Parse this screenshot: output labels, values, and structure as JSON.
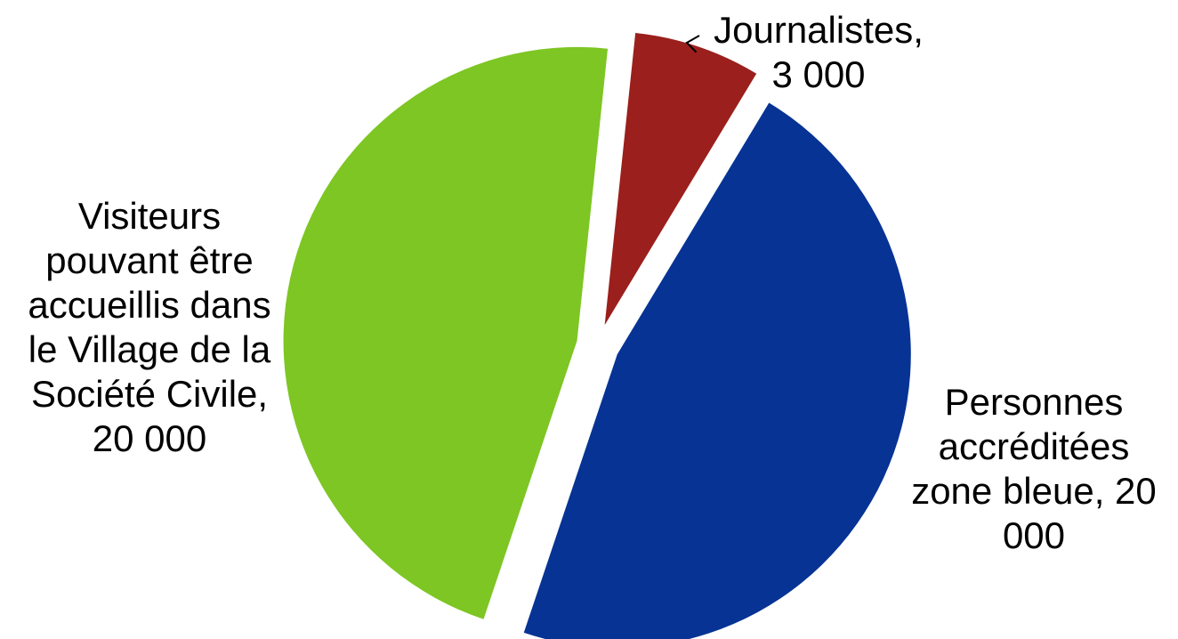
{
  "chart_data": {
    "type": "pie",
    "exploded": true,
    "slices": [
      {
        "label_lines": [
          "Journalistes,",
          "3 000"
        ],
        "category": "Journalistes",
        "value": 3000,
        "value_text": "3 000",
        "color": "#9b1f1c"
      },
      {
        "label_lines": [
          "Personnes",
          "accréditées",
          "zone bleue, 20",
          "000"
        ],
        "category": "Personnes accréditées zone bleue",
        "value": 20000,
        "value_text": "20 000",
        "color": "#063394"
      },
      {
        "label_lines": [
          "Visiteurs",
          "pouvant être",
          "accueillis dans",
          "le Village de la",
          "Société Civile,",
          "20 000"
        ],
        "category": "Visiteurs pouvant être accueillis dans le Village de la Société Civile",
        "value": 20000,
        "value_text": "20 000",
        "color": "#7dc623"
      }
    ],
    "leader_line": "Journalistes",
    "legend": "none"
  }
}
